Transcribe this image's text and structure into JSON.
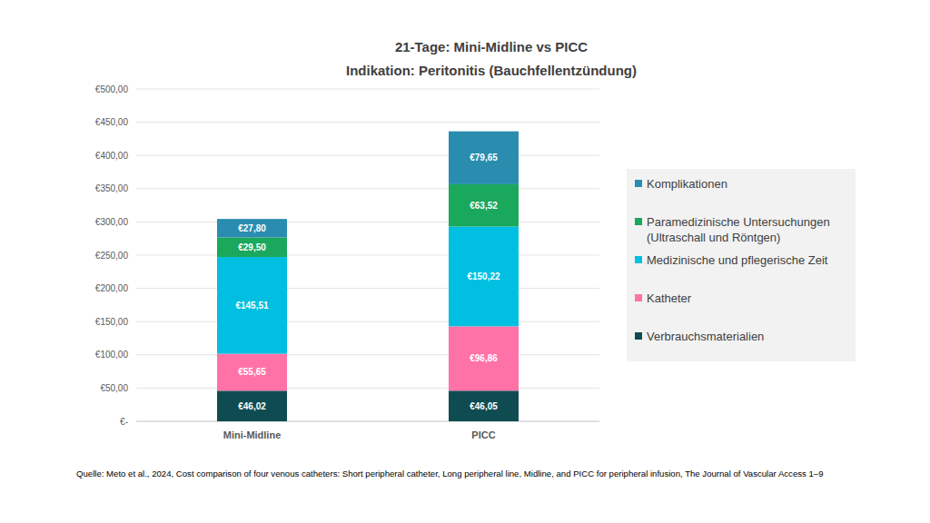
{
  "chart_data": {
    "type": "bar",
    "stacked": true,
    "data_labels": true,
    "grid": true,
    "legend": "right",
    "title": "21-Tage: Mini-Midline vs PICC",
    "subtitle": "Indikation: Peritonitis (Bauchfellentzündung)",
    "annotations": [
      "Quelle: Meto et al., 2024, Cost comparison of four venous catheters: Short peripheral catheter, Long peripheral line, Midline, and PICC for peripheral infusion, The Journal of Vascular Access 1–9"
    ],
    "categories": [
      "Mini-Midline",
      "PICC"
    ],
    "ylim": [
      0,
      500
    ],
    "yticks": [
      {
        "value": 0,
        "label": "€-"
      },
      {
        "value": 50,
        "label": "€50,00"
      },
      {
        "value": 100,
        "label": "€100,00"
      },
      {
        "value": 150,
        "label": "€150,00"
      },
      {
        "value": 200,
        "label": "€200,00"
      },
      {
        "value": 250,
        "label": "€250,00"
      },
      {
        "value": 300,
        "label": "€300,00"
      },
      {
        "value": 350,
        "label": "€350,00"
      },
      {
        "value": 400,
        "label": "€400,00"
      },
      {
        "value": 450,
        "label": "€450,00"
      },
      {
        "value": 500,
        "label": "€500,00"
      }
    ],
    "series": [
      {
        "name": "Verbrauchsmaterialien",
        "color": "#0e4c52",
        "values": [
          46.02,
          46.05
        ],
        "value_labels": [
          "€46,02",
          "€46,05"
        ]
      },
      {
        "name": "Katheter",
        "color": "#ff72a8",
        "values": [
          55.65,
          96.86
        ],
        "value_labels": [
          "€55,65",
          "€96,86"
        ]
      },
      {
        "name": "Medizinische und pflegerische Zeit",
        "color": "#00bfe0",
        "values": [
          145.51,
          150.22
        ],
        "value_labels": [
          "€145,51",
          "€150,22"
        ]
      },
      {
        "name": "Paramedizinische Untersuchungen (Ultraschall und Röntgen)",
        "color": "#1aa85c",
        "values": [
          29.5,
          63.52
        ],
        "value_labels": [
          "€29,50",
          "€63,52"
        ]
      },
      {
        "name": "Komplikationen",
        "color": "#2a8db0",
        "values": [
          27.8,
          79.65
        ],
        "value_labels": [
          "€27,80",
          "€79,65"
        ]
      }
    ]
  }
}
